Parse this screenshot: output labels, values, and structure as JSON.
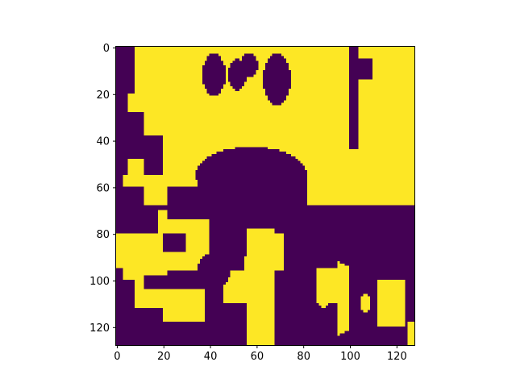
{
  "chart_data": {
    "type": "heatmap",
    "title": "",
    "xlabel": "",
    "ylabel": "",
    "width": 128,
    "height": 128,
    "xlim": [
      -0.5,
      127.5
    ],
    "ylim": [
      127.5,
      -0.5
    ],
    "origin": "upper",
    "colormap": "viridis",
    "colors": {
      "low": "#440154",
      "high": "#fde725"
    },
    "value_range": [
      0,
      1
    ],
    "grid": false,
    "x_ticks": [
      0,
      20,
      40,
      60,
      80,
      100,
      120
    ],
    "y_ticks": [
      0,
      20,
      40,
      60,
      80,
      100,
      120
    ],
    "x_tick_labels": [
      "0",
      "20",
      "40",
      "60",
      "80",
      "100",
      "120"
    ],
    "y_tick_labels": [
      "0",
      "20",
      "40",
      "60",
      "80",
      "100",
      "120"
    ],
    "description_of_values": "binary mask: 1 = yellow, 0 = purple",
    "regions_high": [
      {
        "shape": "rect",
        "x0": 3,
        "x1": 128,
        "y0": 0,
        "y1": 68
      },
      {
        "shape": "rect",
        "x0": 0,
        "x1": 22,
        "y0": 80,
        "y1": 100
      },
      {
        "shape": "rect",
        "x0": 18,
        "x1": 45,
        "y0": 70,
        "y1": 96
      },
      {
        "shape": "rect",
        "x0": 56,
        "x1": 68,
        "y0": 78,
        "y1": 128
      },
      {
        "shape": "rect",
        "x0": 46,
        "x1": 58,
        "y0": 90,
        "y1": 110
      },
      {
        "shape": "rect",
        "x0": 20,
        "x1": 38,
        "y0": 104,
        "y1": 118
      },
      {
        "shape": "rect",
        "x0": 8,
        "x1": 20,
        "y0": 100,
        "y1": 112
      },
      {
        "shape": "ellipse",
        "cx": 83,
        "cy": 108,
        "rx": 26,
        "ry": 18
      },
      {
        "shape": "rect",
        "x0": 98,
        "x1": 118,
        "y0": 65,
        "y1": 72
      },
      {
        "shape": "rect",
        "x0": 88,
        "x1": 100,
        "y0": 60,
        "y1": 68
      }
    ],
    "regions_low": [
      {
        "shape": "rect",
        "x0": 0,
        "x1": 3,
        "y0": 0,
        "y1": 80
      },
      {
        "shape": "rect",
        "x0": 0,
        "x1": 5,
        "y0": 0,
        "y1": 55
      },
      {
        "shape": "rect",
        "x0": 3,
        "x1": 8,
        "y0": 0,
        "y1": 20
      },
      {
        "shape": "rect",
        "x0": 5,
        "x1": 12,
        "y0": 28,
        "y1": 48
      },
      {
        "shape": "rect",
        "x0": 12,
        "x1": 20,
        "y0": 38,
        "y1": 55
      },
      {
        "shape": "rect",
        "x0": 0,
        "x1": 12,
        "y0": 60,
        "y1": 80
      },
      {
        "shape": "rect",
        "x0": 0,
        "x1": 3,
        "y0": 95,
        "y1": 128
      },
      {
        "shape": "rect",
        "x0": 0,
        "x1": 20,
        "y0": 112,
        "y1": 128
      },
      {
        "shape": "ellipse",
        "cx": 42,
        "cy": 12,
        "rx": 5,
        "ry": 9
      },
      {
        "shape": "ellipse",
        "cx": 52,
        "cy": 12,
        "rx": 4,
        "ry": 7
      },
      {
        "shape": "ellipse",
        "cx": 69,
        "cy": 14,
        "rx": 6,
        "ry": 11
      },
      {
        "shape": "ellipse",
        "cx": 57,
        "cy": 8,
        "rx": 4,
        "ry": 5
      },
      {
        "shape": "rect",
        "x0": 100,
        "x1": 104,
        "y0": 0,
        "y1": 44
      },
      {
        "shape": "rect",
        "x0": 104,
        "x1": 110,
        "y0": 5,
        "y1": 14
      },
      {
        "shape": "ellipse",
        "cx": 58,
        "cy": 55,
        "rx": 24,
        "ry": 12
      },
      {
        "shape": "ellipse",
        "cx": 62,
        "cy": 65,
        "rx": 14,
        "ry": 6
      },
      {
        "shape": "rect",
        "x0": 35,
        "x1": 82,
        "y0": 56,
        "y1": 70
      },
      {
        "shape": "rect",
        "x0": 22,
        "x1": 48,
        "y0": 60,
        "y1": 74
      },
      {
        "shape": "rect",
        "x0": 40,
        "x1": 48,
        "y0": 74,
        "y1": 90
      },
      {
        "shape": "rect",
        "x0": 45,
        "x1": 55,
        "y0": 84,
        "y1": 96
      },
      {
        "shape": "ellipse",
        "cx": 42,
        "cy": 96,
        "rx": 7,
        "ry": 8
      },
      {
        "shape": "ellipse",
        "cx": 42,
        "cy": 96,
        "rx": 3,
        "ry": 3
      },
      {
        "shape": "rect",
        "x0": 68,
        "x1": 95,
        "y0": 80,
        "y1": 128
      },
      {
        "shape": "rect",
        "x0": 72,
        "x1": 92,
        "y0": 68,
        "y1": 82
      },
      {
        "shape": "rect",
        "x0": 92,
        "x1": 128,
        "y0": 68,
        "y1": 84
      },
      {
        "shape": "rect",
        "x0": 100,
        "x1": 128,
        "y0": 84,
        "y1": 128
      },
      {
        "shape": "rect",
        "x0": 20,
        "x1": 40,
        "y0": 118,
        "y1": 128
      },
      {
        "shape": "rect",
        "x0": 40,
        "x1": 56,
        "y0": 110,
        "y1": 128
      },
      {
        "shape": "rect",
        "x0": 12,
        "x1": 28,
        "y0": 98,
        "y1": 104
      },
      {
        "shape": "rect",
        "x0": 20,
        "x1": 30,
        "y0": 80,
        "y1": 88
      }
    ],
    "regions_high_overlay": [
      {
        "shape": "rect",
        "x0": 86,
        "x1": 98,
        "y0": 95,
        "y1": 110
      },
      {
        "shape": "ellipse",
        "cx": 89,
        "cy": 108,
        "rx": 3,
        "ry": 4
      },
      {
        "shape": "ellipse",
        "cx": 107,
        "cy": 110,
        "rx": 2,
        "ry": 4
      },
      {
        "shape": "rect",
        "x0": 68,
        "x1": 72,
        "y0": 80,
        "y1": 96
      },
      {
        "shape": "rect",
        "x0": 112,
        "x1": 124,
        "y0": 100,
        "y1": 120
      },
      {
        "shape": "rect",
        "x0": 125,
        "x1": 128,
        "y0": 118,
        "y1": 128
      }
    ]
  }
}
